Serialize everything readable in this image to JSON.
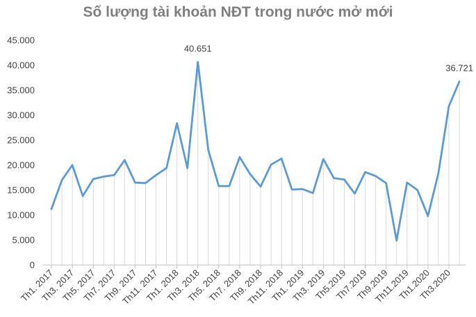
{
  "chart_data": {
    "type": "line",
    "title": "Số lượng tài khoản NĐT trong nước mở mới",
    "xlabel": "",
    "ylabel": "",
    "ylim": [
      0,
      45000
    ],
    "yticks": [
      "0",
      "5.000",
      "10.000",
      "15.000",
      "20.000",
      "25.000",
      "30.000",
      "35.000",
      "40.000",
      "45.000"
    ],
    "grid": false,
    "legend": "none",
    "colors": {
      "line": "#5b9bd5",
      "droplines": "#d9d9d9",
      "axis": "#bfbfbf",
      "text": "#404040",
      "title": "#7f7f7f"
    },
    "x_tick_labels": [
      "Th1. 2017",
      "Th3. 2017",
      "Th5. 2017",
      "Th7. 2017",
      "Th9. 2017",
      "Th11. 2017",
      "Th1. 2018",
      "Th3. 2018",
      "Th5. 2018",
      "Th7. 2018",
      "Th9. 2018",
      "Th11. 2018",
      "Th1. 2019",
      "Th3. 2019",
      "Th5.2019",
      "Th7.2019",
      "Th9.2019",
      "Th11.2019",
      "Th1.2020",
      "Th3.2020"
    ],
    "series": [
      {
        "values": [
          11200,
          17000,
          20000,
          13800,
          17200,
          17700,
          18000,
          21000,
          16500,
          16400,
          18000,
          19400,
          28400,
          19400,
          40651,
          23000,
          15800,
          15800,
          21600,
          18200,
          15700,
          20100,
          21300,
          15100,
          15200,
          14400,
          21200,
          17400,
          17100,
          14300,
          18600,
          17800,
          16400,
          4900,
          16500,
          15000,
          9800,
          18400,
          31800,
          36721
        ]
      }
    ],
    "data_labels": [
      {
        "index": 14,
        "text": "40.651"
      },
      {
        "index": 39,
        "text": "36.721"
      }
    ]
  }
}
